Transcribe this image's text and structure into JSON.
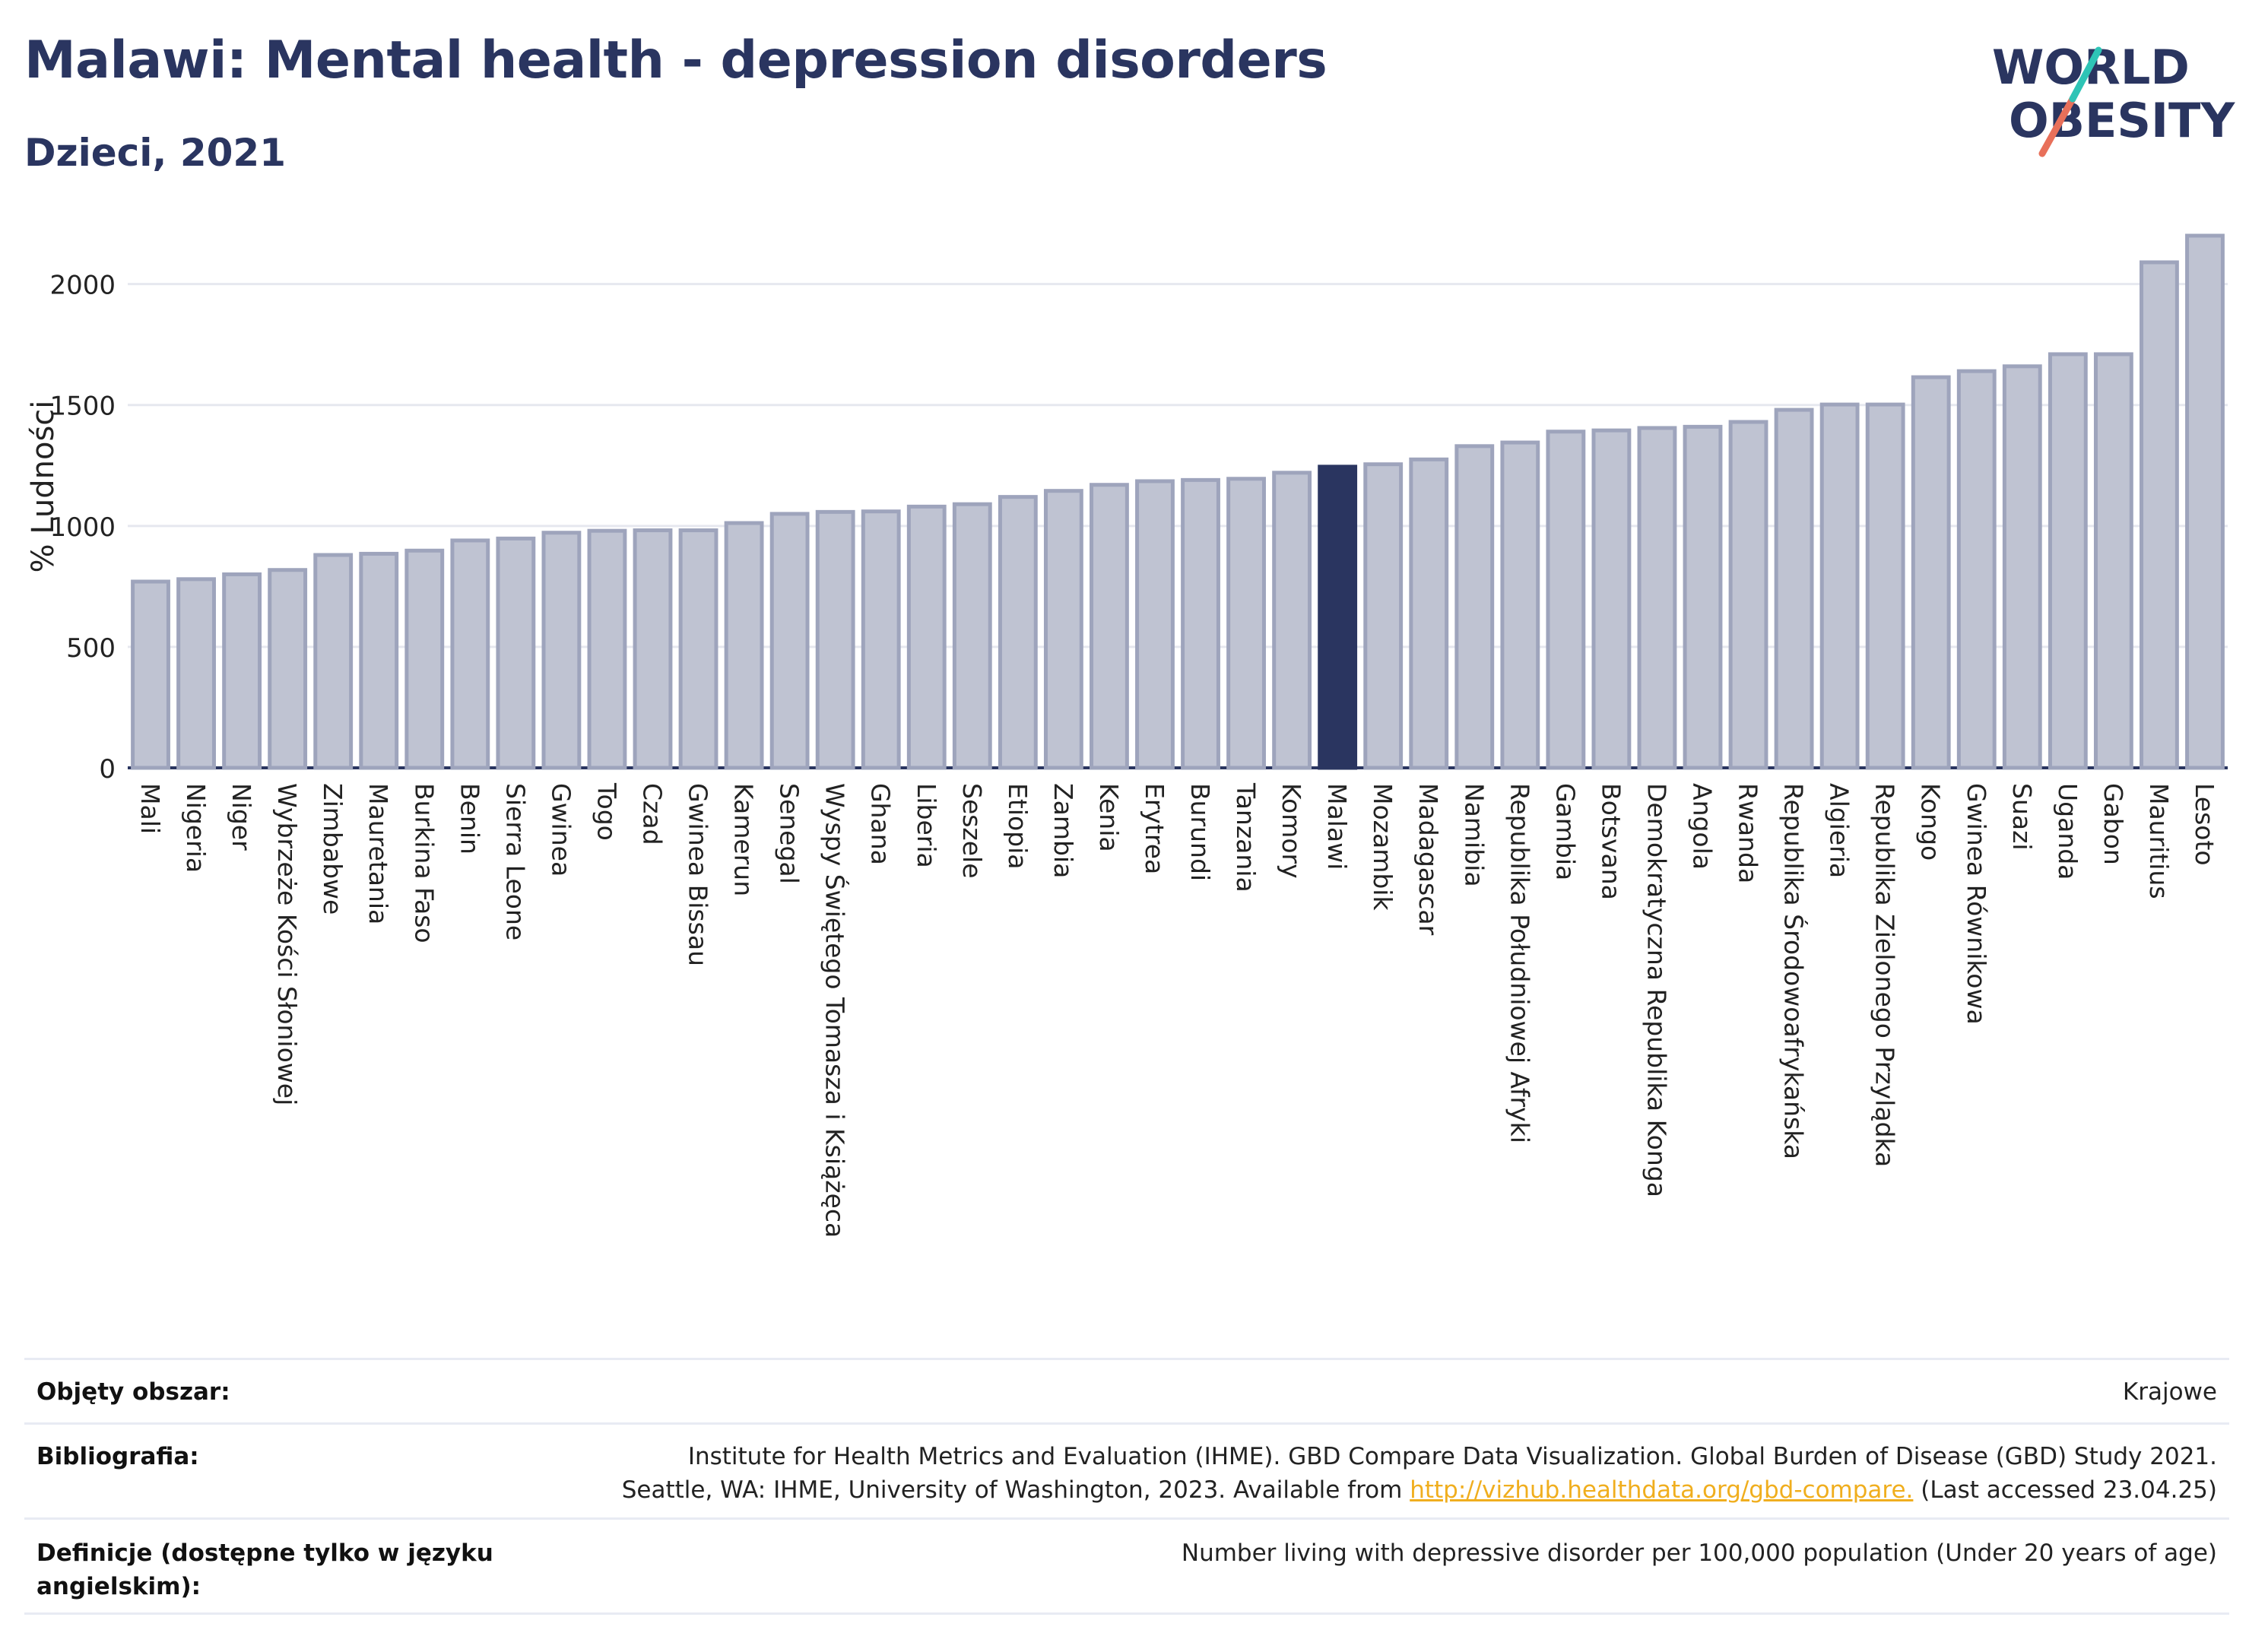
{
  "header": {
    "title": "Malawi: Mental health - depression disorders",
    "subtitle": "Dzieci, 2021"
  },
  "logo": {
    "line1": "WORLD",
    "line2": "OBESITY"
  },
  "colors": {
    "accent": "#2a3560",
    "bar": "#bfc3d2",
    "bar_stroke": "#9ea4bc",
    "grid": "#e6e8ef",
    "link": "#f0ae1e"
  },
  "chart_data": {
    "type": "bar",
    "ylabel": "% Ludności",
    "ylim": [
      0,
      2200
    ],
    "yticks": [
      0,
      500,
      1000,
      1500,
      2000
    ],
    "grid": true,
    "highlight": "Malawi",
    "categories": [
      "Mali",
      "Nigeria",
      "Niger",
      "Wybrzeże Kości Słoniowej",
      "Zimbabwe",
      "Mauretania",
      "Burkina Faso",
      "Benin",
      "Sierra Leone",
      "Gwinea",
      "Togo",
      "Czad",
      "Gwinea Bissau",
      "Kamerun",
      "Senegal",
      "Wyspy Świętego Tomasza i Książęca",
      "Ghana",
      "Liberia",
      "Seszele",
      "Etiopia",
      "Zambia",
      "Kenia",
      "Erytrea",
      "Burundi",
      "Tanzania",
      "Komory",
      "Malawi",
      "Mozambik",
      "Madagascar",
      "Namibia",
      "Republika Południowej Afryki",
      "Gambia",
      "Botsvana",
      "Demokratyczna Republika Konga",
      "Angola",
      "Rwanda",
      "Republika Środowoafrykańska",
      "Algieria",
      "Republika Zielonego Przylądka",
      "Kongo",
      "Gwinea Równikowa",
      "Suazi",
      "Uganda",
      "Gabon",
      "Mauritius",
      "Lesoto"
    ],
    "values": [
      770,
      780,
      800,
      818,
      880,
      885,
      898,
      940,
      948,
      972,
      980,
      982,
      982,
      1012,
      1050,
      1058,
      1060,
      1080,
      1090,
      1120,
      1145,
      1170,
      1185,
      1190,
      1195,
      1220,
      1245,
      1255,
      1275,
      1330,
      1345,
      1390,
      1395,
      1405,
      1410,
      1430,
      1480,
      1502,
      1502,
      1615,
      1640,
      1660,
      1710,
      1710,
      2090,
      2200
    ]
  },
  "footer": {
    "coverage_label": "Objęty obszar:",
    "coverage_value": "Krajowe",
    "biblio_label": "Bibliografia:",
    "biblio_line1": "Institute for Health Metrics and Evaluation (IHME). GBD Compare Data Visualization. Global Burden of Disease (GBD) Study 2021.",
    "biblio_line2_pre": "Seattle, WA: IHME, University of Washington, 2023. Available from ",
    "biblio_link": "http://vizhub.healthdata.org/gbd-compare.",
    "biblio_line2_post": " (Last accessed 23.04.25)",
    "def_label": "Definicje (dostępne tylko w języku angielskim):",
    "def_value": "Number living with depressive disorder per 100,000 population (Under 20 years of age)"
  }
}
